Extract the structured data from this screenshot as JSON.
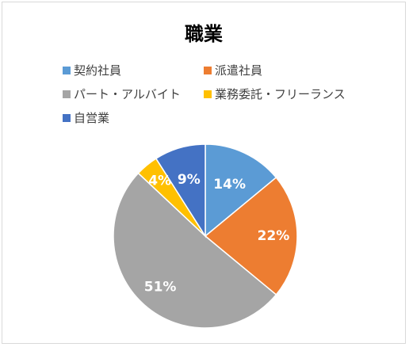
{
  "chart_data": {
    "type": "pie",
    "title": "職業",
    "categories": [
      "契約社員",
      "派遣社員",
      "パート・アルバイト",
      "業務委託・フリーランス",
      "自営業"
    ],
    "values": [
      14,
      22,
      51,
      4,
      9
    ],
    "value_labels": [
      "14%",
      "22%",
      "51%",
      "4%",
      "9%"
    ],
    "colors": [
      "#5B9BD5",
      "#ED7D31",
      "#A5A5A5",
      "#FFC000",
      "#4472C4"
    ],
    "legend_position": "top",
    "start_angle": "12 o'clock",
    "direction": "clockwise"
  }
}
